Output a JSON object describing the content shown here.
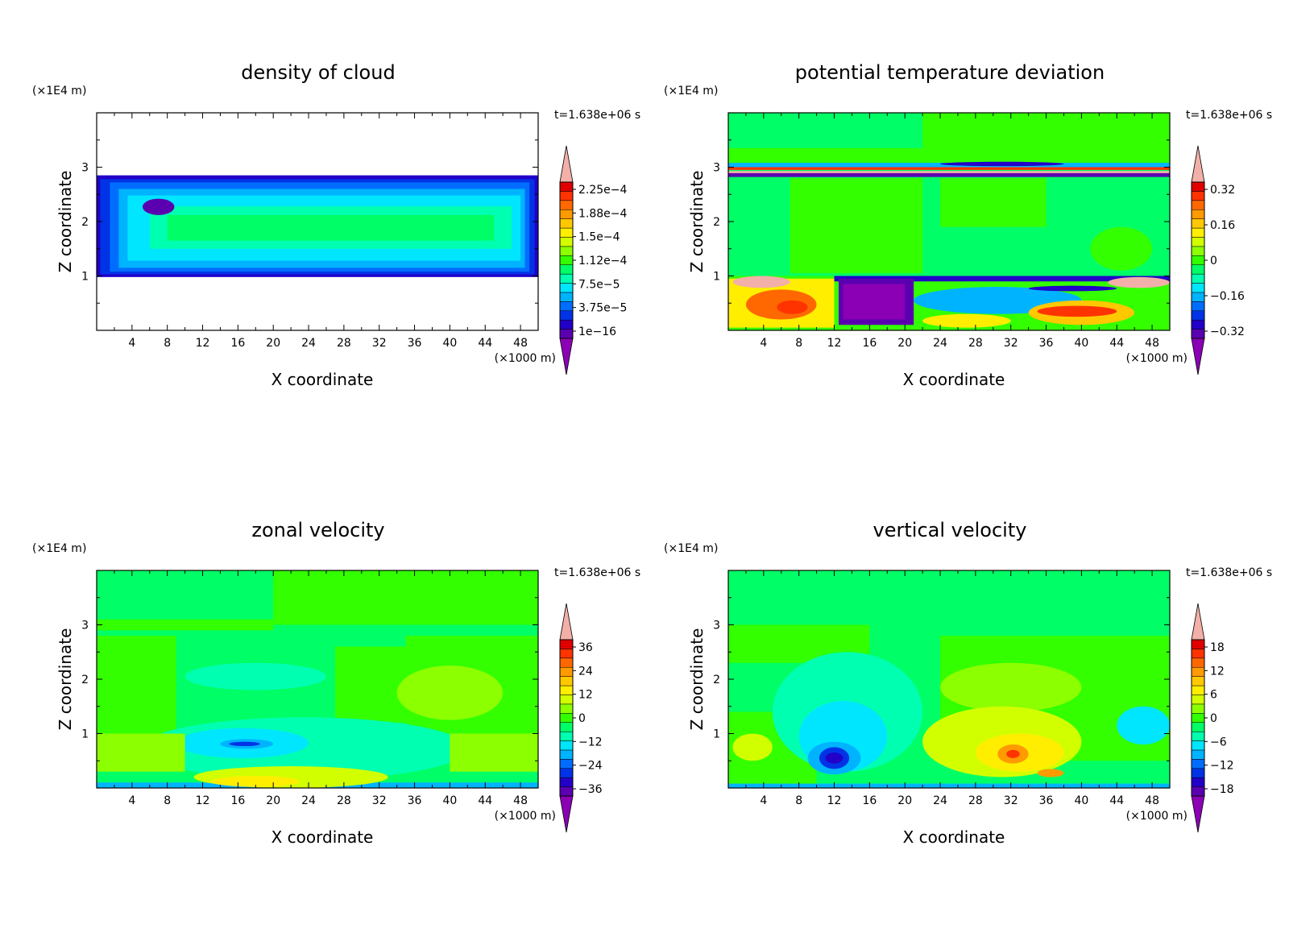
{
  "colorbar_colors": [
    "#8b00b5",
    "#5a00b0",
    "#2200c8",
    "#0033e6",
    "#006dff",
    "#00b3ff",
    "#00e6ff",
    "#00ffb0",
    "#00ff66",
    "#33ff00",
    "#8cff00",
    "#d2ff00",
    "#ffee00",
    "#ffc800",
    "#ff9a00",
    "#ff6800",
    "#ff3300",
    "#e00000",
    "#f2b0a8"
  ],
  "chart_data": [
    {
      "type": "heatmap",
      "title": "density of cloud",
      "xlabel": "X coordinate",
      "ylabel": "Z coordinate",
      "x_unit": "(×1000 m)",
      "y_unit": "(×1E4 m)",
      "time_label": "t=1.638e+06 s",
      "xlim": [
        0,
        50
      ],
      "ylim": [
        0,
        4
      ],
      "x_ticks": [
        4,
        8,
        12,
        16,
        20,
        24,
        28,
        32,
        36,
        40,
        44,
        48
      ],
      "y_ticks": [
        1,
        2,
        3
      ],
      "colorbar_labels": [
        "2.25e-4",
        "1.88e-4",
        "1.5e-4",
        "1.12e-4",
        "7.5e-5",
        "3.75e-5",
        "1e-16"
      ],
      "background": "#ffffff",
      "regions": [
        {
          "color": "#2200c8",
          "x": [
            0,
            50
          ],
          "y": [
            0.98,
            2.85
          ]
        },
        {
          "color": "#0033e6",
          "x": [
            0.4,
            49.6
          ],
          "y": [
            1.03,
            2.78
          ]
        },
        {
          "color": "#006dff",
          "x": [
            1.5,
            49
          ],
          "y": [
            1.08,
            2.72
          ]
        },
        {
          "color": "#00b3ff",
          "x": [
            2.5,
            48.5
          ],
          "y": [
            1.15,
            2.6
          ]
        },
        {
          "color": "#00e6ff",
          "x": [
            3.5,
            48
          ],
          "y": [
            1.28,
            2.48
          ]
        },
        {
          "color": "#00ffb0",
          "x": [
            6,
            47
          ],
          "y": [
            1.5,
            2.28
          ]
        },
        {
          "color": "#00ff66",
          "x": [
            8,
            45
          ],
          "y": [
            1.65,
            2.12
          ]
        },
        {
          "color": "#5a00b0",
          "x": [
            5.2,
            8.8
          ],
          "y": [
            2.12,
            2.42
          ],
          "shape": "ellipse"
        }
      ]
    },
    {
      "type": "heatmap",
      "title": "potential temperature deviation",
      "xlabel": "X coordinate",
      "ylabel": "Z coordinate",
      "x_unit": "(×1000 m)",
      "y_unit": "(×1E4 m)",
      "time_label": "t=1.638e+06 s",
      "xlim": [
        0,
        50
      ],
      "ylim": [
        0,
        4
      ],
      "x_ticks": [
        4,
        8,
        12,
        16,
        20,
        24,
        28,
        32,
        36,
        40,
        44,
        48
      ],
      "y_ticks": [
        1,
        2,
        3
      ],
      "colorbar_labels": [
        "0.32",
        "0.16",
        "0",
        "-0.16",
        "-0.32"
      ],
      "background": "#00ff66",
      "regions": [
        {
          "color": "#33ff00",
          "x": [
            0,
            50
          ],
          "y": [
            3.05,
            3.35
          ]
        },
        {
          "color": "#33ff00",
          "x": [
            22,
            50
          ],
          "y": [
            3.3,
            4.0
          ]
        },
        {
          "color": "#33ff00",
          "x": [
            7,
            22
          ],
          "y": [
            1.05,
            2.8
          ]
        },
        {
          "color": "#33ff00",
          "x": [
            24,
            36
          ],
          "y": [
            1.9,
            2.8
          ]
        },
        {
          "color": "#33ff00",
          "x": [
            41,
            48
          ],
          "y": [
            1.1,
            1.9
          ],
          "shape": "ellipse"
        },
        {
          "color": "#00b3ff",
          "x": [
            0,
            50
          ],
          "y": [
            3.0,
            3.08
          ]
        },
        {
          "color": "#ff3300",
          "x": [
            0,
            50
          ],
          "y": [
            2.95,
            3.0
          ]
        },
        {
          "color": "#2200c8",
          "x": [
            24,
            38
          ],
          "y": [
            3.02,
            3.1
          ],
          "shape": "ellipse"
        },
        {
          "color": "#5a00b0",
          "x": [
            0,
            50
          ],
          "y": [
            2.82,
            2.9
          ]
        },
        {
          "color": "#f2b0a8",
          "x": [
            0,
            50
          ],
          "y": [
            2.89,
            2.93
          ]
        },
        {
          "color": "#33ff00",
          "x": [
            0,
            50
          ],
          "y": [
            0,
            1.0
          ]
        },
        {
          "color": "#ffee00",
          "x": [
            0,
            12
          ],
          "y": [
            0.05,
            0.95
          ]
        },
        {
          "color": "#ff6800",
          "x": [
            2,
            10
          ],
          "y": [
            0.2,
            0.75
          ],
          "shape": "ellipse"
        },
        {
          "color": "#ff3300",
          "x": [
            5.5,
            9
          ],
          "y": [
            0.3,
            0.55
          ],
          "shape": "ellipse"
        },
        {
          "color": "#f2b0a8",
          "x": [
            0.5,
            7
          ],
          "y": [
            0.78,
            1.0
          ],
          "shape": "ellipse"
        },
        {
          "color": "#2200c8",
          "x": [
            12,
            50
          ],
          "y": [
            0.9,
            1.0
          ]
        },
        {
          "color": "#5a00b0",
          "x": [
            12.5,
            21
          ],
          "y": [
            0.1,
            0.95
          ]
        },
        {
          "color": "#8b00b5",
          "x": [
            13,
            20
          ],
          "y": [
            0.2,
            0.85
          ]
        },
        {
          "color": "#00b3ff",
          "x": [
            21,
            40
          ],
          "y": [
            0.3,
            0.8
          ],
          "shape": "ellipse"
        },
        {
          "color": "#ffc800",
          "x": [
            34,
            46
          ],
          "y": [
            0.1,
            0.55
          ],
          "shape": "ellipse"
        },
        {
          "color": "#ff3300",
          "x": [
            35,
            44
          ],
          "y": [
            0.25,
            0.45
          ],
          "shape": "ellipse"
        },
        {
          "color": "#f2b0a8",
          "x": [
            43,
            50
          ],
          "y": [
            0.78,
            0.98
          ],
          "shape": "ellipse"
        },
        {
          "color": "#2200c8",
          "x": [
            34,
            44
          ],
          "y": [
            0.72,
            0.82
          ],
          "shape": "ellipse"
        },
        {
          "color": "#ffee00",
          "x": [
            22,
            32
          ],
          "y": [
            0.05,
            0.3
          ],
          "shape": "ellipse"
        }
      ]
    },
    {
      "type": "heatmap",
      "title": "zonal velocity",
      "xlabel": "X coordinate",
      "ylabel": "Z coordinate",
      "x_unit": "(×1000 m)",
      "y_unit": "(×1E4 m)",
      "time_label": "t=1.638e+06 s",
      "xlim": [
        0,
        50
      ],
      "ylim": [
        0,
        4
      ],
      "x_ticks": [
        4,
        8,
        12,
        16,
        20,
        24,
        28,
        32,
        36,
        40,
        44,
        48
      ],
      "y_ticks": [
        1,
        2,
        3
      ],
      "colorbar_labels": [
        "36",
        "24",
        "12",
        "0",
        "-12",
        "-24",
        "-36"
      ],
      "background": "#00ff66",
      "regions": [
        {
          "color": "#33ff00",
          "x": [
            20,
            50
          ],
          "y": [
            3.0,
            4.0
          ]
        },
        {
          "color": "#33ff00",
          "x": [
            0,
            20
          ],
          "y": [
            2.9,
            3.1
          ]
        },
        {
          "color": "#33ff00",
          "x": [
            0,
            9
          ],
          "y": [
            1.0,
            2.8
          ]
        },
        {
          "color": "#33ff00",
          "x": [
            35,
            50
          ],
          "y": [
            0.9,
            2.8
          ]
        },
        {
          "color": "#33ff00",
          "x": [
            27,
            35
          ],
          "y": [
            1.2,
            2.6
          ]
        },
        {
          "color": "#8cff00",
          "x": [
            34,
            46
          ],
          "y": [
            1.25,
            2.25
          ],
          "shape": "ellipse"
        },
        {
          "color": "#00ffb0",
          "x": [
            10,
            26
          ],
          "y": [
            1.8,
            2.3
          ],
          "shape": "ellipse"
        },
        {
          "color": "#00ffb0",
          "x": [
            5,
            42
          ],
          "y": [
            0.15,
            1.3
          ],
          "shape": "ellipse"
        },
        {
          "color": "#00e6ff",
          "x": [
            9,
            24
          ],
          "y": [
            0.55,
            1.1
          ],
          "shape": "ellipse"
        },
        {
          "color": "#00b3ff",
          "x": [
            14,
            20
          ],
          "y": [
            0.72,
            0.9
          ],
          "shape": "ellipse"
        },
        {
          "color": "#0033e6",
          "x": [
            15,
            18.5
          ],
          "y": [
            0.77,
            0.85
          ],
          "shape": "ellipse"
        },
        {
          "color": "#8cff00",
          "x": [
            0,
            10
          ],
          "y": [
            0.3,
            1.0
          ]
        },
        {
          "color": "#8cff00",
          "x": [
            40,
            50
          ],
          "y": [
            0.3,
            1.0
          ]
        },
        {
          "color": "#00b3ff",
          "x": [
            0,
            50
          ],
          "y": [
            0,
            0.1
          ]
        },
        {
          "color": "#d2ff00",
          "x": [
            11,
            33
          ],
          "y": [
            0,
            0.4
          ],
          "shape": "ellipse"
        },
        {
          "color": "#ffee00",
          "x": [
            13,
            23
          ],
          "y": [
            0.02,
            0.22
          ],
          "shape": "ellipse"
        }
      ]
    },
    {
      "type": "heatmap",
      "title": "vertical velocity",
      "xlabel": "X coordinate",
      "ylabel": "Z coordinate",
      "x_unit": "(×1000 m)",
      "y_unit": "(×1E4 m)",
      "time_label": "t=1.638e+06 s",
      "xlim": [
        0,
        50
      ],
      "ylim": [
        0,
        4
      ],
      "x_ticks": [
        4,
        8,
        12,
        16,
        20,
        24,
        28,
        32,
        36,
        40,
        44,
        48
      ],
      "y_ticks": [
        1,
        2,
        3
      ],
      "colorbar_labels": [
        "18",
        "12",
        "6",
        "0",
        "-6",
        "-12",
        "-18"
      ],
      "background": "#00ff66",
      "regions": [
        {
          "color": "#33ff00",
          "x": [
            0,
            16
          ],
          "y": [
            2.3,
            3.0
          ]
        },
        {
          "color": "#33ff00",
          "x": [
            24,
            50
          ],
          "y": [
            0.5,
            2.8
          ]
        },
        {
          "color": "#33ff00",
          "x": [
            0,
            10
          ],
          "y": [
            0,
            1.4
          ]
        },
        {
          "color": "#00ffb0",
          "x": [
            5,
            22
          ],
          "y": [
            0.3,
            2.5
          ],
          "shape": "ellipse"
        },
        {
          "color": "#00e6ff",
          "x": [
            8,
            18
          ],
          "y": [
            0.3,
            1.6
          ],
          "shape": "ellipse"
        },
        {
          "color": "#8cff00",
          "x": [
            24,
            40
          ],
          "y": [
            1.4,
            2.3
          ],
          "shape": "ellipse"
        },
        {
          "color": "#d2ff00",
          "x": [
            22,
            40
          ],
          "y": [
            0.2,
            1.5
          ],
          "shape": "ellipse"
        },
        {
          "color": "#ffee00",
          "x": [
            28,
            38
          ],
          "y": [
            0.3,
            1.0
          ],
          "shape": "ellipse"
        },
        {
          "color": "#ff9a00",
          "x": [
            30.5,
            34
          ],
          "y": [
            0.45,
            0.8
          ],
          "shape": "ellipse"
        },
        {
          "color": "#ff3300",
          "x": [
            31.5,
            33
          ],
          "y": [
            0.55,
            0.7
          ],
          "shape": "ellipse"
        },
        {
          "color": "#ff9a00",
          "x": [
            35,
            38
          ],
          "y": [
            0.2,
            0.35
          ],
          "shape": "ellipse"
        },
        {
          "color": "#00b3ff",
          "x": [
            9,
            15
          ],
          "y": [
            0.25,
            0.85
          ],
          "shape": "ellipse"
        },
        {
          "color": "#0033e6",
          "x": [
            10.3,
            13.7
          ],
          "y": [
            0.35,
            0.75
          ],
          "shape": "ellipse"
        },
        {
          "color": "#2200c8",
          "x": [
            11,
            13
          ],
          "y": [
            0.45,
            0.65
          ],
          "shape": "ellipse"
        },
        {
          "color": "#d2ff00",
          "x": [
            0.5,
            5
          ],
          "y": [
            0.5,
            1.0
          ],
          "shape": "ellipse"
        },
        {
          "color": "#00e6ff",
          "x": [
            44,
            50
          ],
          "y": [
            0.8,
            1.5
          ],
          "shape": "ellipse"
        },
        {
          "color": "#00b3ff",
          "x": [
            0,
            50
          ],
          "y": [
            0,
            0.08
          ]
        }
      ]
    }
  ]
}
